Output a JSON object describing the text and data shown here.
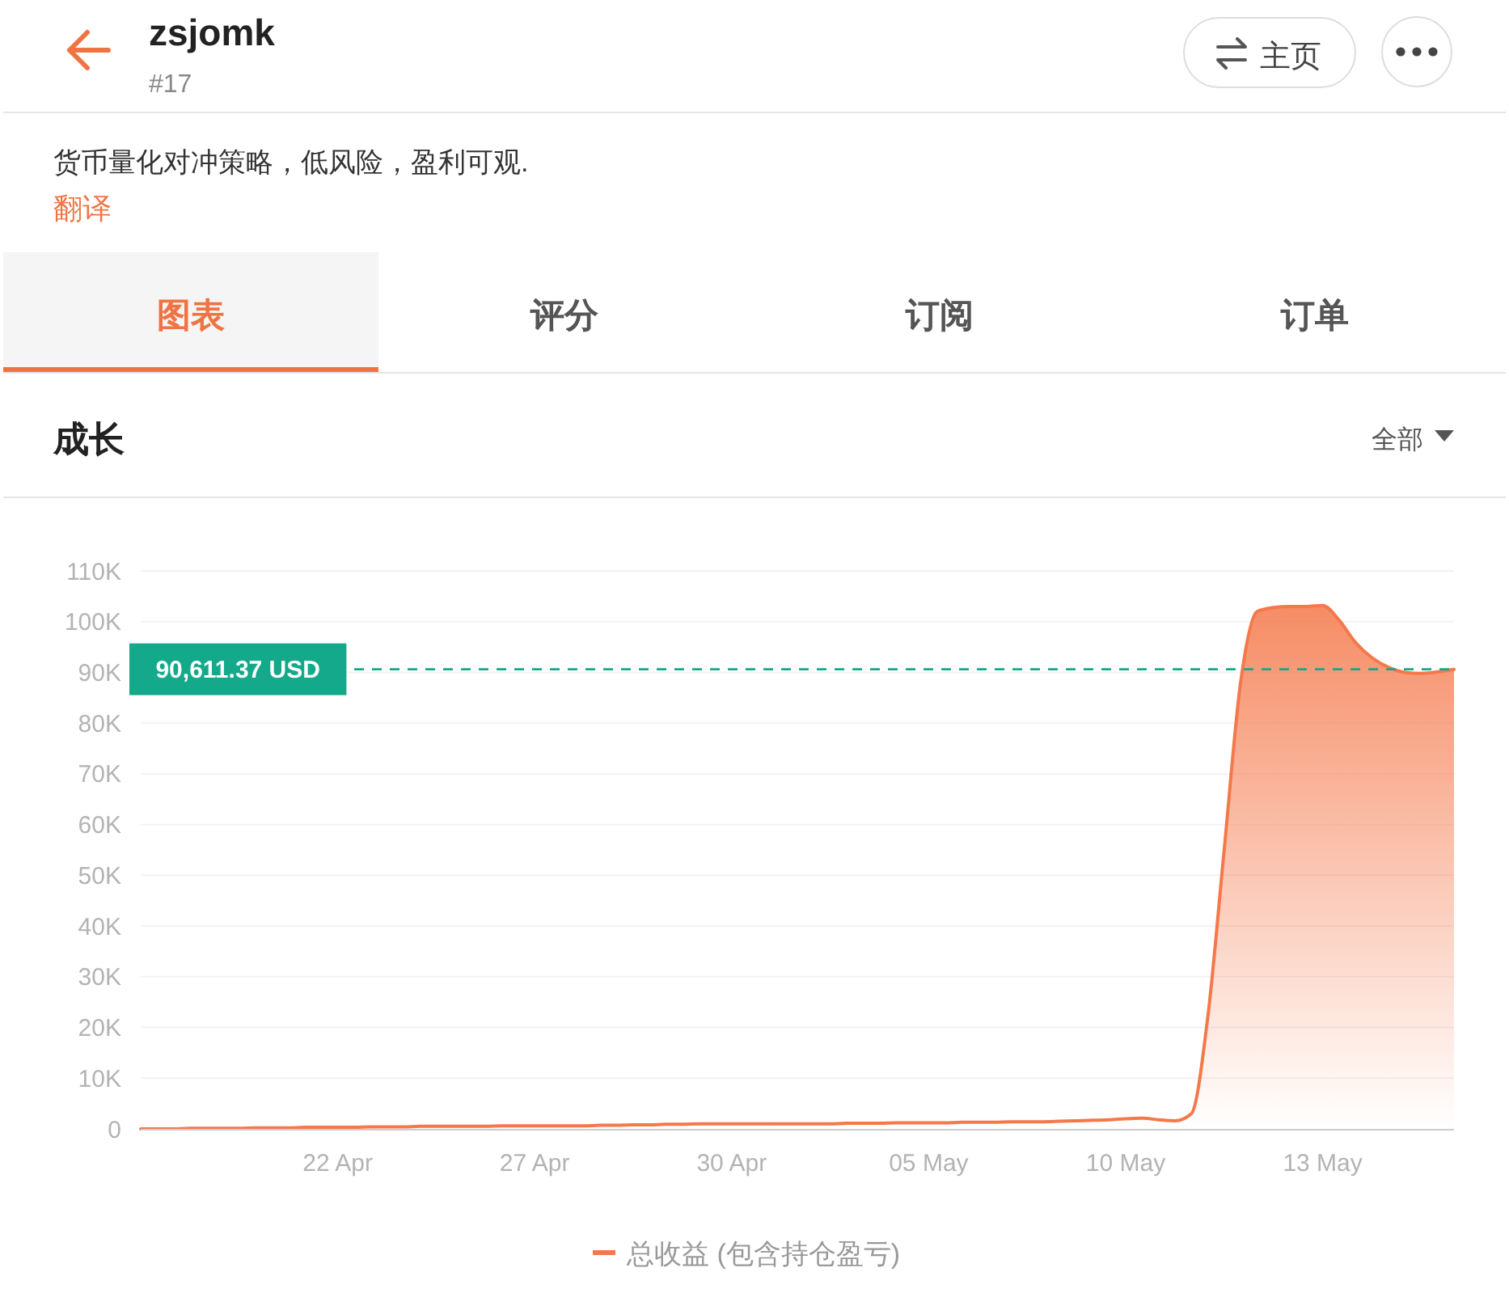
{
  "chart_data": {
    "type": "area",
    "title": "成长",
    "annotations": [
      "zsjomk",
      "#17",
      "主页",
      "货币量化对冲策略，低风险，盈利可观.",
      "翻译",
      "图表",
      "评分",
      "订阅",
      "订单",
      "全部"
    ],
    "categories": [
      null,
      null,
      null,
      null,
      null,
      null,
      null,
      null,
      null,
      null,
      null,
      null,
      "22 Apr",
      null,
      null,
      null,
      null,
      null,
      null,
      null,
      null,
      null,
      null,
      null,
      "27 Apr",
      null,
      null,
      null,
      null,
      null,
      null,
      null,
      null,
      null,
      null,
      null,
      "30 Apr",
      null,
      null,
      null,
      null,
      null,
      null,
      null,
      null,
      null,
      null,
      null,
      "05 May",
      null,
      null,
      null,
      null,
      null,
      null,
      null,
      null,
      null,
      null,
      null,
      "10 May",
      null,
      null,
      null,
      null,
      null,
      null,
      null,
      null,
      null,
      null,
      null,
      "13 May",
      null,
      null,
      null,
      null,
      null,
      null,
      null,
      null
    ],
    "series": [
      {
        "name": "总收益 (包含持仓盈亏)",
        "color": "#f4784a",
        "values": [
          0,
          0,
          0,
          100,
          100,
          100,
          100,
          200,
          200,
          200,
          300,
          300,
          300,
          300,
          400,
          400,
          400,
          500,
          500,
          500,
          500,
          500,
          600,
          600,
          600,
          600,
          600,
          600,
          700,
          700,
          800,
          800,
          900,
          900,
          1000,
          1000,
          1000,
          1000,
          1000,
          1000,
          1000,
          1000,
          1000,
          1100,
          1100,
          1100,
          1200,
          1200,
          1200,
          1200,
          1300,
          1300,
          1300,
          1400,
          1400,
          1400,
          1500,
          1600,
          1700,
          1800,
          2000,
          2100,
          1800,
          1600,
          3000,
          22000,
          55000,
          88000,
          102000,
          102800,
          103000,
          103000,
          103200,
          100300,
          95900,
          92900,
          91000,
          90000,
          89800,
          90100,
          90600
        ]
      }
    ],
    "ylim": [
      0,
      110000
    ],
    "yticks": [
      0,
      {
        "value": 10000,
        "label": "10K"
      },
      {
        "value": 20000,
        "label": "20K"
      },
      {
        "value": 30000,
        "label": "30K"
      },
      {
        "value": 40000,
        "label": "40K"
      },
      {
        "value": 50000,
        "label": "50K"
      },
      {
        "value": 60000,
        "label": "60K"
      },
      {
        "value": 70000,
        "label": "70K"
      },
      {
        "value": 80000,
        "label": "80K"
      },
      {
        "value": 90000,
        "label": "90K"
      },
      {
        "value": 100000,
        "label": "100K"
      },
      {
        "value": 110000,
        "label": "110K"
      }
    ],
    "grid": "y",
    "legend": "bottom",
    "ref_lines": [
      {
        "axis": "y",
        "value": 90611.37,
        "label": "90,611.37 USD",
        "color": "#14a98b",
        "line_style": "dashed"
      }
    ]
  }
}
